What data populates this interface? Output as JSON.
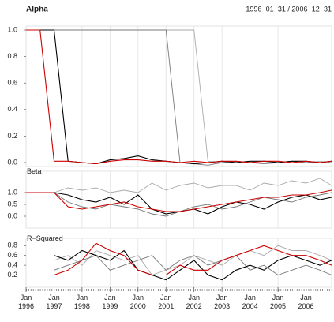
{
  "chart_data": [
    {
      "type": "line",
      "title": "Alpha",
      "subtitle": "1996−01−31 / 2006−12−31",
      "x": [
        "1996-01",
        "1996-07",
        "1997-01",
        "1997-07",
        "1998-01",
        "1998-07",
        "1999-01",
        "1999-07",
        "2000-01",
        "2000-07",
        "2001-01",
        "2001-07",
        "2002-01",
        "2002-07",
        "2003-01",
        "2003-07",
        "2004-01",
        "2004-07",
        "2005-01",
        "2005-07",
        "2006-01",
        "2006-07",
        "2006-12"
      ],
      "xlim": [
        "1996-01",
        "2006-12"
      ],
      "ylim": [
        -0.03,
        1.03
      ],
      "yticks": [
        {
          "value": 0,
          "label": "0.0"
        },
        0.2,
        0.4,
        0.6,
        0.8,
        {
          "value": 1,
          "label": "1.0"
        }
      ],
      "series": [
        {
          "color": "#aaaaaa",
          "values": [
            1,
            1,
            1,
            1,
            1,
            1,
            1,
            1,
            1,
            1,
            1,
            1,
            1,
            0.01,
            0.0,
            0.01,
            0.0,
            0.01,
            0.0,
            0.01,
            0.0,
            0.01,
            0.0
          ]
        },
        {
          "color": "#777777",
          "values": [
            1,
            1,
            1,
            1,
            1,
            1,
            1,
            1,
            1,
            1,
            1,
            0.0,
            -0.01,
            -0.02,
            0.0,
            0.01,
            0.0,
            -0.01,
            0.0,
            0.01,
            0.0,
            0.0,
            0.01
          ]
        },
        {
          "color": "#000000",
          "values": [
            1,
            1,
            1,
            0.01,
            0.0,
            -0.01,
            0.02,
            0.03,
            0.05,
            0.02,
            0.01,
            0.0,
            -0.01,
            0.0,
            0.01,
            0.0,
            0.01,
            0.01,
            0.0,
            0.01,
            0.01,
            0.0,
            0.01
          ]
        },
        {
          "color": "#cc0000",
          "values": [
            1,
            1,
            0.01,
            0.01,
            0.0,
            -0.01,
            0.01,
            0.02,
            0.02,
            0.01,
            0.01,
            0.0,
            0.01,
            0.0,
            0.01,
            0.01,
            0.0,
            0.01,
            0.01,
            0.0,
            0.01,
            0.0,
            0.01
          ]
        }
      ]
    },
    {
      "type": "line",
      "title": "Beta",
      "x": [
        "1996-01",
        "1996-07",
        "1997-01",
        "1997-07",
        "1998-01",
        "1998-07",
        "1999-01",
        "1999-07",
        "2000-01",
        "2000-07",
        "2001-01",
        "2001-07",
        "2002-01",
        "2002-07",
        "2003-01",
        "2003-07",
        "2004-01",
        "2004-07",
        "2005-01",
        "2005-07",
        "2006-01",
        "2006-07",
        "2006-12"
      ],
      "xlim": [
        "1996-01",
        "2006-12"
      ],
      "ylim": [
        -0.5,
        1.9
      ],
      "yticks": [
        {
          "value": 0,
          "label": "0.0"
        },
        0.5,
        {
          "value": 1,
          "label": "1.0"
        }
      ],
      "series": [
        {
          "color": "#aaaaaa",
          "values": [
            1,
            1,
            1,
            1.2,
            1.1,
            1.2,
            1.0,
            1.1,
            1.0,
            1.4,
            1.1,
            1.3,
            1.4,
            1.2,
            1.3,
            1.3,
            1.1,
            1.4,
            1.3,
            1.5,
            1.4,
            1.6,
            1.3
          ]
        },
        {
          "color": "#777777",
          "values": [
            1,
            1,
            1,
            0.6,
            0.4,
            0.3,
            0.5,
            0.4,
            0.3,
            0.1,
            0.0,
            0.2,
            0.4,
            0.5,
            0.3,
            0.4,
            0.6,
            0.8,
            0.7,
            0.6,
            0.8,
            0.9,
            1.0
          ]
        },
        {
          "color": "#000000",
          "values": [
            1,
            1,
            1,
            0.9,
            0.7,
            0.6,
            0.8,
            0.5,
            0.9,
            0.3,
            0.1,
            0.2,
            0.3,
            0.1,
            0.4,
            0.6,
            0.5,
            0.3,
            0.6,
            0.8,
            0.9,
            0.7,
            0.8
          ]
        },
        {
          "color": "#cc0000",
          "values": [
            1,
            1,
            1,
            0.4,
            0.3,
            0.4,
            0.5,
            0.6,
            0.4,
            0.3,
            0.2,
            0.2,
            0.3,
            0.4,
            0.5,
            0.6,
            0.7,
            0.8,
            0.8,
            0.9,
            0.9,
            1.0,
            1.1
          ]
        }
      ]
    },
    {
      "type": "line",
      "title": "R−Squared",
      "x": [
        "1996-01",
        "1996-07",
        "1997-01",
        "1997-07",
        "1998-01",
        "1998-07",
        "1999-01",
        "1999-07",
        "2000-01",
        "2000-07",
        "2001-01",
        "2001-07",
        "2002-01",
        "2002-07",
        "2003-01",
        "2003-07",
        "2004-01",
        "2004-07",
        "2005-01",
        "2005-07",
        "2006-01",
        "2006-07",
        "2006-12"
      ],
      "xlim": [
        "1996-01",
        "2006-12"
      ],
      "ylim": [
        -0.05,
        0.95
      ],
      "yticks": [
        0.2,
        0.4,
        0.6,
        0.8
      ],
      "xticks": [
        {
          "value": "1996-01",
          "label": "Jan 1996"
        },
        {
          "value": "1997-01",
          "label": "Jan 1997"
        },
        {
          "value": "1998-01",
          "label": "Jan 1998"
        },
        {
          "value": "1999-01",
          "label": "Jan 1999"
        },
        {
          "value": "2000-01",
          "label": "Jan 2000"
        },
        {
          "value": "2001-01",
          "label": "Jan 2001"
        },
        {
          "value": "2002-01",
          "label": "Jan 2002"
        },
        {
          "value": "2003-01",
          "label": "Jan 2003"
        },
        {
          "value": "2004-01",
          "label": "Jan 2004"
        },
        {
          "value": "2005-01",
          "label": "Jan 2005"
        },
        {
          "value": "2006-01",
          "label": "Jan 2006"
        }
      ],
      "series": [
        {
          "color": "#aaaaaa",
          "values": [
            null,
            null,
            0.5,
            0.6,
            0.4,
            0.7,
            0.6,
            0.5,
            0.6,
            0.2,
            0.3,
            0.4,
            0.6,
            0.5,
            0.4,
            0.6,
            0.7,
            0.6,
            0.8,
            0.7,
            0.7,
            0.6,
            0.5
          ]
        },
        {
          "color": "#777777",
          "values": [
            null,
            null,
            0.3,
            0.4,
            0.5,
            0.6,
            0.3,
            0.4,
            0.5,
            0.6,
            0.3,
            0.5,
            0.6,
            0.4,
            0.5,
            0.6,
            0.3,
            0.4,
            0.2,
            0.3,
            0.4,
            0.3,
            0.2
          ]
        },
        {
          "color": "#000000",
          "values": [
            null,
            null,
            0.6,
            0.5,
            0.7,
            0.6,
            0.5,
            0.7,
            0.3,
            0.2,
            0.1,
            0.3,
            0.5,
            0.2,
            0.1,
            0.3,
            0.4,
            0.3,
            0.5,
            0.6,
            0.5,
            0.4,
            0.5
          ]
        },
        {
          "color": "#cc0000",
          "values": [
            null,
            null,
            0.2,
            0.3,
            0.5,
            0.85,
            0.7,
            0.6,
            0.3,
            0.2,
            0.2,
            0.4,
            0.3,
            0.3,
            0.5,
            0.6,
            0.7,
            0.8,
            0.7,
            0.6,
            0.6,
            0.5,
            0.4
          ]
        }
      ]
    }
  ]
}
